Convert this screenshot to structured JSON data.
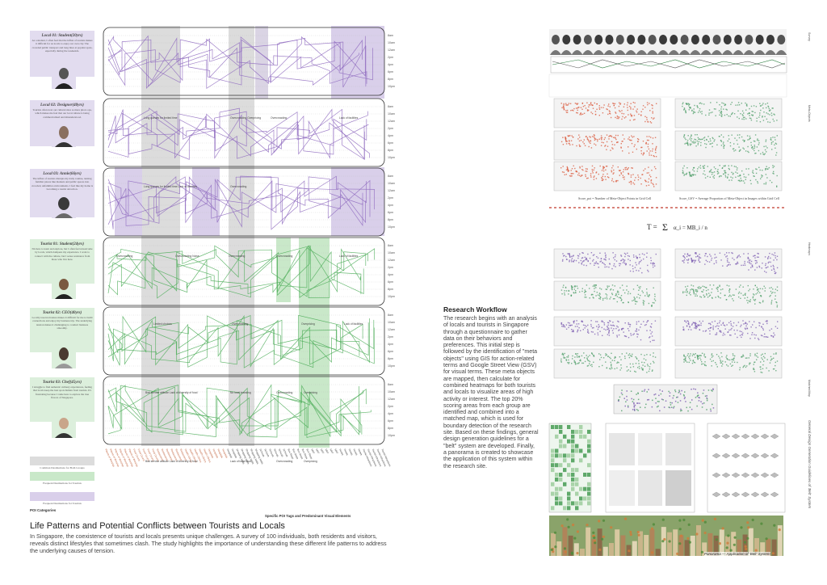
{
  "personas": [
    {
      "title": "Local 01: Student(20yrs)",
      "text": "As a student, I often feel that the influx of tourists makes it difficult for us locals to enjoy our own city. The crowded public transport and long lines at popular spots, especially during the weekends.",
      "kind": "local"
    },
    {
      "title": "Local 02: Designer(40yrs)",
      "text": "Tourists often treat our cultural sites as mere photo ops, which makes me feel that our local culture is being commercialized and misunderstood.",
      "kind": "local"
    },
    {
      "title": "Local 03: Annie(66yrs)",
      "text": "The influx of tourists disrupts my daily routine, turning familiar places like markets and public spaces into crowded, unfamiliar environments. I feel like my home is becoming a tourist attraction.",
      "kind": "local"
    },
    {
      "title": "Tourist 01: Student(24yrs)",
      "text": "I'm here to learn and explore, but I often feel unwelcome by locals, which dampens my experience. I want to connect with the culture, but I sense resistance from those who live here.",
      "kind": "tourist"
    },
    {
      "title": "Tourist 02: CEO(40yrs)",
      "text": "Locally reserved nature makes it difficult for me to build connections and enjoy my business trip. The underlying tension makes it challenging to conduct business smoothly.",
      "kind": "tourist"
    },
    {
      "title": "Tourist 03: Chef(45yrs)",
      "text": "I struggle to find authentic culinary experiences, feeling that locals keep the best spots hidden from tourists. It's frustrating because I came here to explore the true flavors of Singapore.",
      "kind": "tourist"
    }
  ],
  "legend": [
    {
      "label": "Common Destinations for Both Groups",
      "color": "#dcdcdc"
    },
    {
      "label": "Frequent Destinations for Tourists",
      "color": "#c9e8c9"
    },
    {
      "label": "Frequent Destinations for Tourists",
      "color": "#d9cfea"
    }
  ],
  "poi_categories_label": "POI Categories",
  "poi_axis_label": "Specific POI Tags and Predominant Visual Elements",
  "band_labels": [
    [
      "Long queues for limited time",
      "Overcrowding Overpricing",
      "Overcrowding",
      "Lack of facilities"
    ],
    [
      "Long queues for limited time Lack of diversity",
      "Overcrowding"
    ],
    [
      "Overcrowding",
      "Overcrowding Noise",
      "Overcrowding",
      "Overcrowding",
      "Lack of facilities"
    ],
    [
      "Limited choices",
      "Overcrowding",
      "Overpricing",
      "Lack of facilities"
    ],
    [
      "Bad service attitude Lack of diversity of food",
      "No local branding",
      "Overcrowding",
      "Overpricing"
    ],
    [
      "Bad service attitude Lack of diversity of food",
      "Lack of local food",
      "Overcrowding",
      "Overpricing"
    ]
  ],
  "time_ticks": [
    "8am",
    "10am",
    "12am",
    "2pm",
    "4pm",
    "6pm",
    "8pm",
    "10pm"
  ],
  "poi_categories": [
    "Places of Worship",
    "Food Courts",
    "Restaurants",
    "Health Clinics",
    "Hospitals",
    "Shopping Malls",
    "Schools",
    "Bus Stops",
    "MRT",
    "Hotels",
    "Tourist Attractions"
  ],
  "title": "Life Patterns and Potential Conflicts between Tourists and Locals",
  "intro": "In Singapore, the coexistence of tourists and locals presents unique challenges. A survey of 100 individuals, both residents and visitors, reveals distinct lifestyles that sometimes clash. The study highlights the importance of understanding these different life patterns to address the underlying causes of tension.",
  "workflow_title": "Research Workflow",
  "workflow_text": "The research begins with an analysis of locals and tourists in Singapore through a questionnaire to gather data on their behaviors and preferences. This initial step is followed by the identification of \"meta objects\" using GIS for action-related terms and Google Street View (GSV) for visual terms. These meta objects are mapped, then calculate for combined heatmaps for both tourists and locals to visualize areas of high activity or interest. The top 20% scoring areas from each group are identified and combined into a matched map, which is used for boundary detection of the research site. Based on these findings, general design generation guidelines for a \"belt\" system are developed. Finally, a panorama is created to showcase the application of this system within the research site.",
  "formula": {
    "lhs": "T =",
    "sum": "Σ",
    "rhs": "α_i = MB_i / n",
    "score_left": "Score_poi = Number of Meta-Object Points in Grid Cell",
    "score_right": "Score_GSV = Average Proportion of Meta-Object in Images within Grid Cell"
  },
  "right_side_labels": [
    "Survey",
    "Meta-Objects",
    "Heatmaps",
    "Matched Map",
    "General Design Generation Guidelines of 'Belt' System"
  ],
  "panorama_label": "Panorama — Application of 'Belt' System",
  "colors": {
    "local": "#8f6bbf",
    "tourist": "#4fae5a",
    "heat_red": "#d9573a",
    "heat_green": "#4d9e68",
    "heat_purple": "#7b5bb0"
  }
}
